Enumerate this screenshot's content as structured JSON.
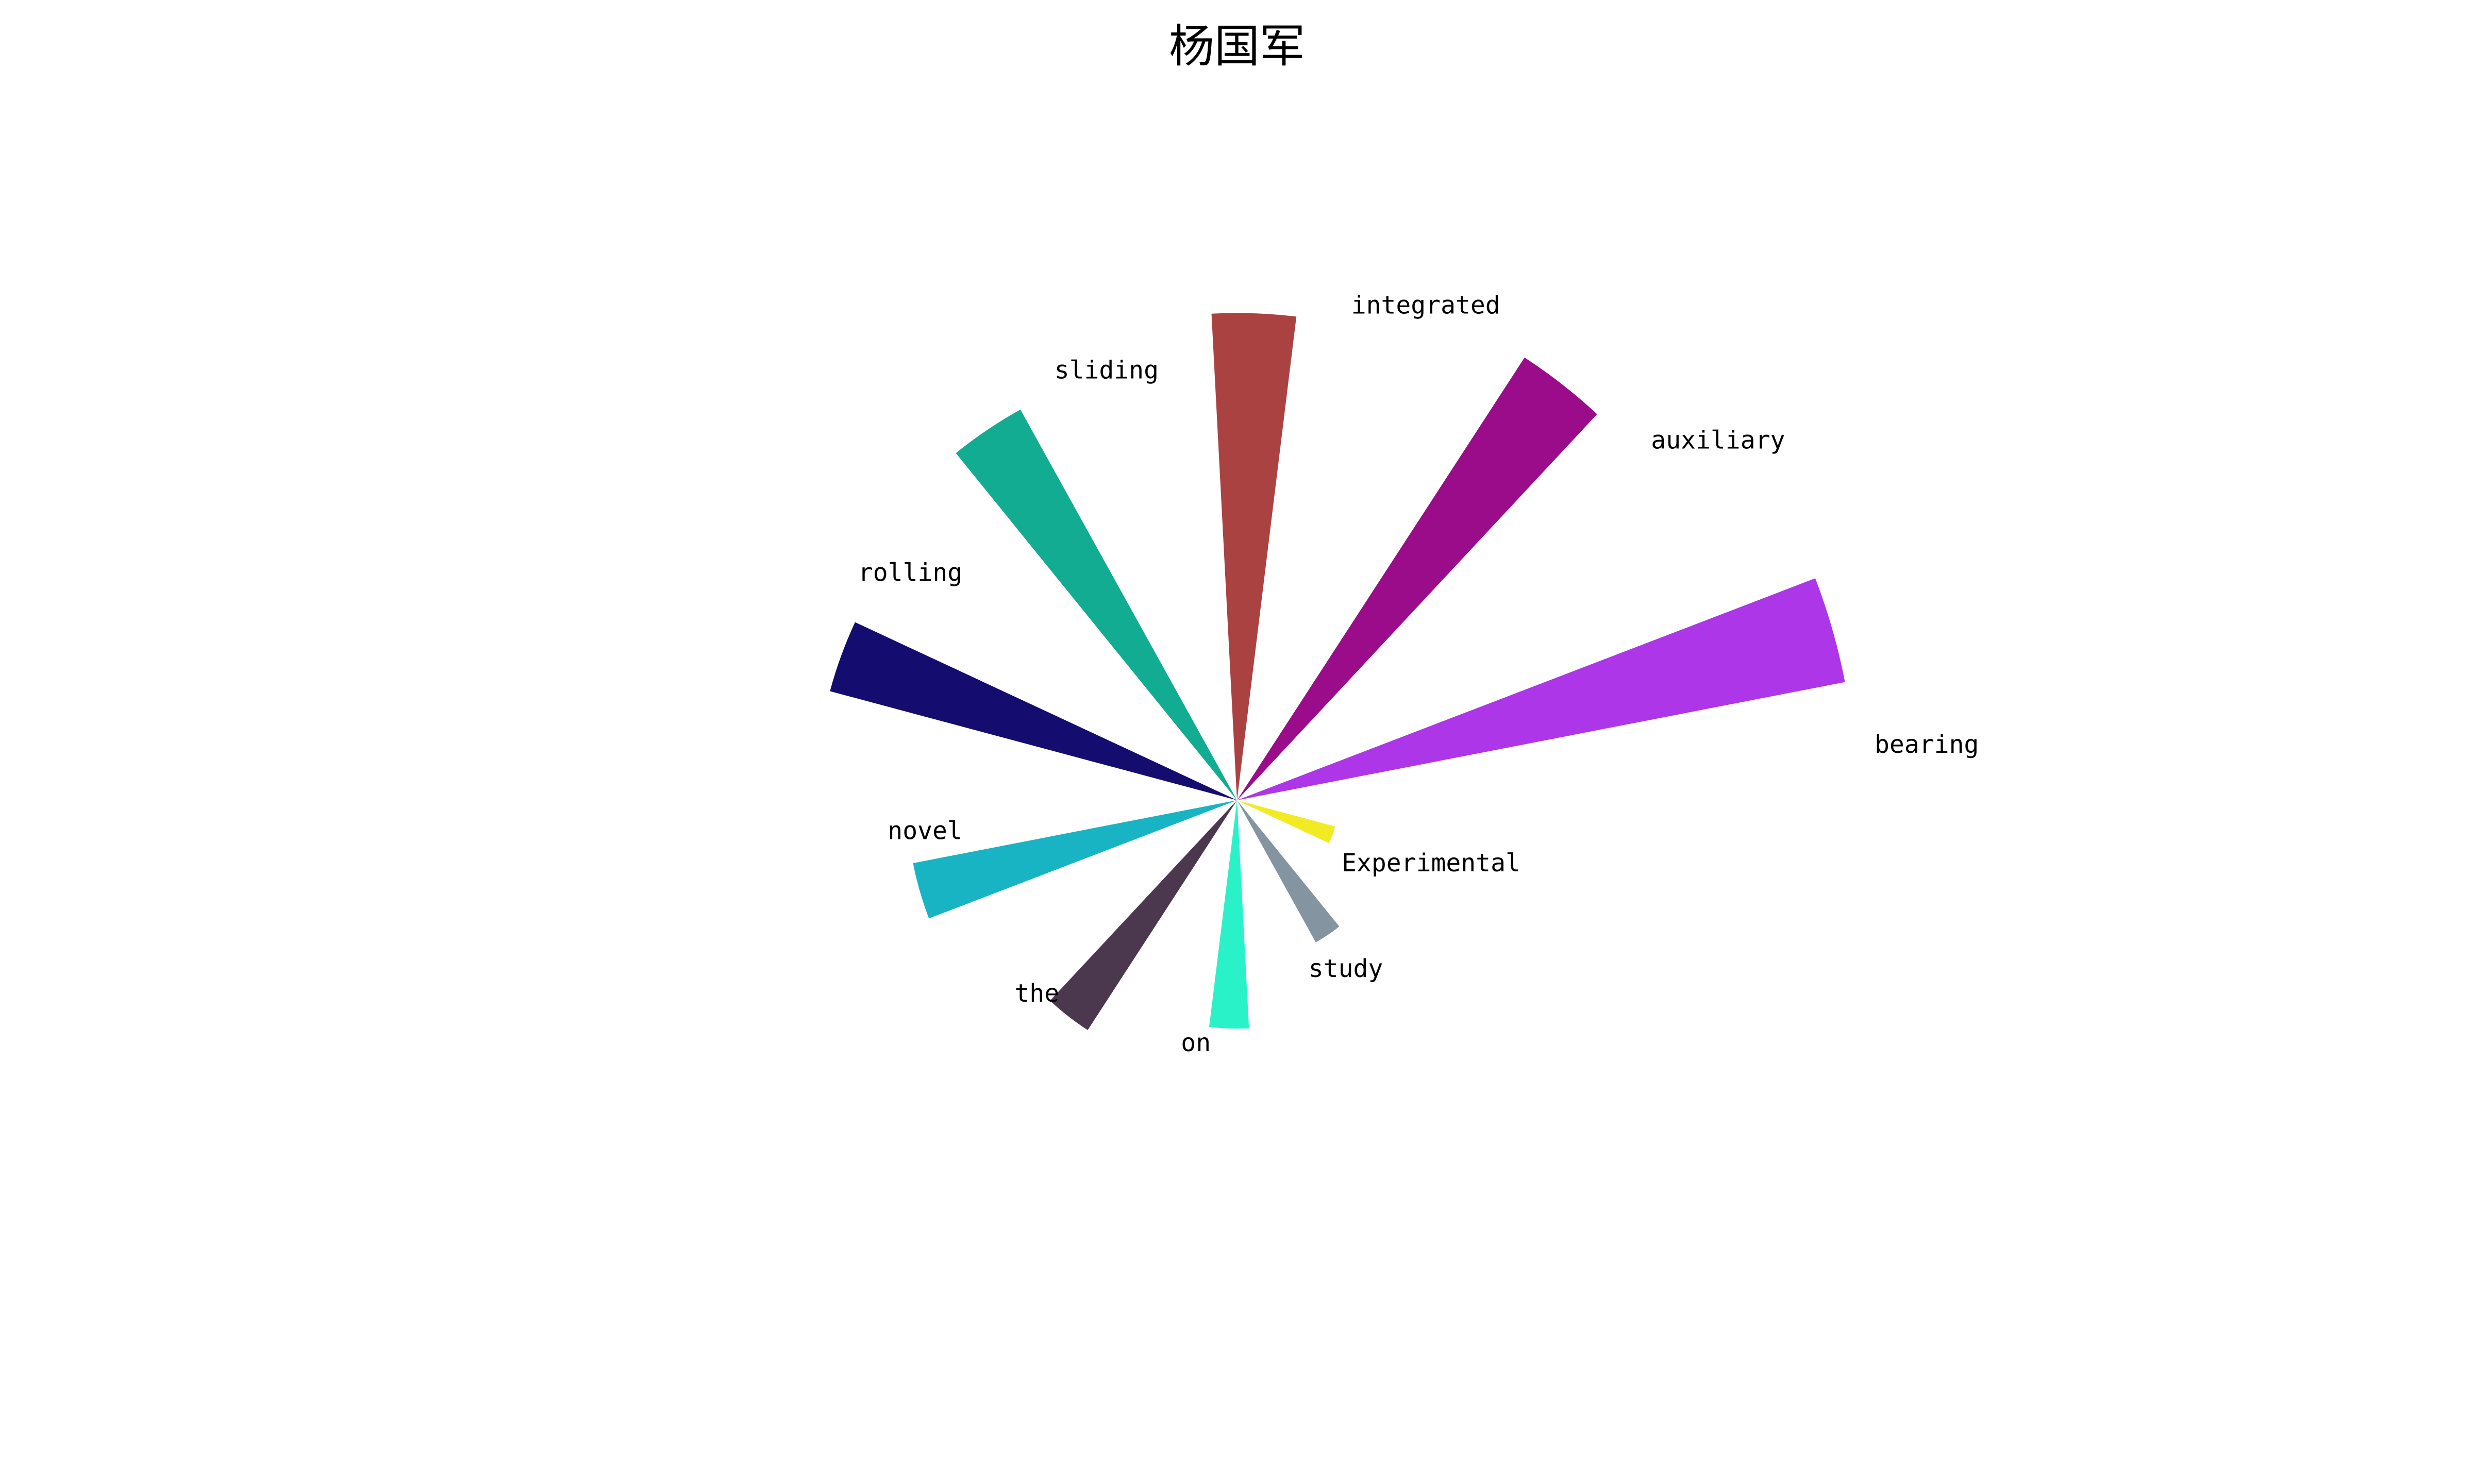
{
  "chart_data": {
    "type": "bar",
    "subtype": "polar",
    "title": "杨国军",
    "categories": [
      "Experimental",
      "study",
      "on",
      "the",
      "novel",
      "rolling",
      "sliding",
      "integrated",
      "auxiliary",
      "bearing"
    ],
    "values": [
      2,
      3.2,
      4.5,
      5.4,
      6.5,
      8.3,
      8.8,
      9.6,
      10.4,
      12.2
    ],
    "colors": [
      "#f2ea22",
      "#8494a0",
      "#2af2c8",
      "#4b384f",
      "#18b4c4",
      "#140c6e",
      "#12ac92",
      "#aa4242",
      "#9a0c8a",
      "#ac36e8"
    ],
    "grid": false,
    "legend": "none"
  }
}
